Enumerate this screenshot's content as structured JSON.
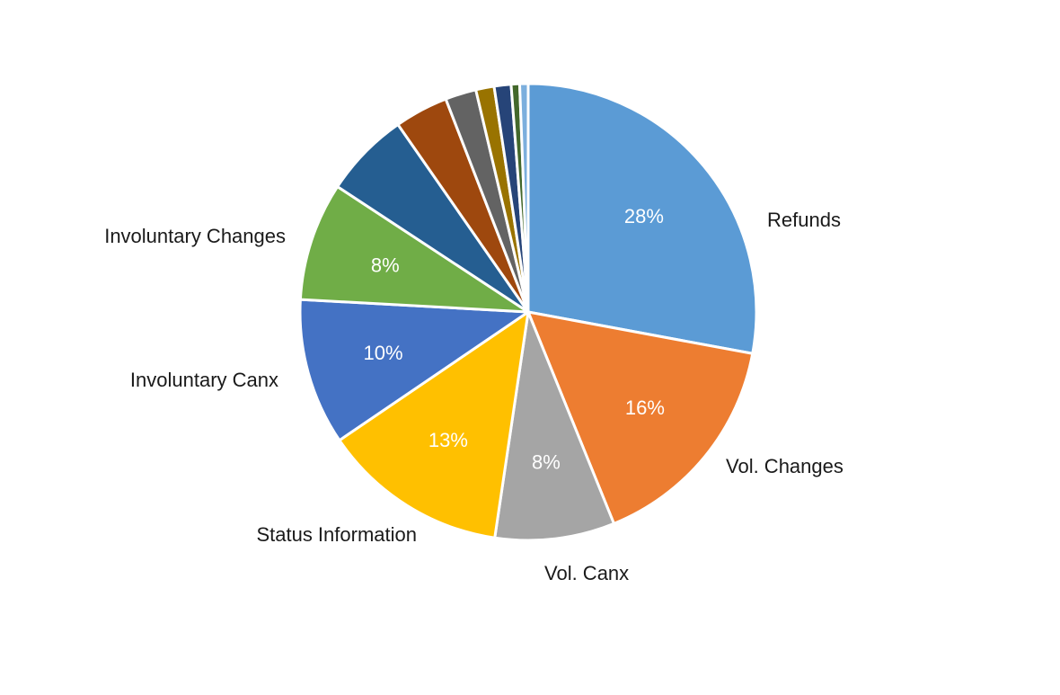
{
  "chart_data": {
    "type": "pie",
    "title": "",
    "start_angle_deg": 0,
    "direction": "clockwise",
    "slices": [
      {
        "label": "Refunds",
        "value": 28,
        "percent_label": "28%",
        "color": "#5B9BD5",
        "show_label": true
      },
      {
        "label": "Vol. Changes",
        "value": 16,
        "percent_label": "16%",
        "color": "#ED7D31",
        "show_label": true
      },
      {
        "label": "Vol. Canx",
        "value": 8.5,
        "percent_label": "8%",
        "color": "#A5A5A5",
        "show_label": true
      },
      {
        "label": "Status Information",
        "value": 13.2,
        "percent_label": "13%",
        "color": "#FFC000",
        "show_label": true
      },
      {
        "label": "Involuntary Canx",
        "value": 10.4,
        "percent_label": "10%",
        "color": "#4472C4",
        "show_label": true
      },
      {
        "label": "Involuntary Changes",
        "value": 8.4,
        "percent_label": "8%",
        "color": "#70AD47",
        "show_label": true
      },
      {
        "label": "",
        "value": 6.1,
        "percent_label": "",
        "color": "#255E91",
        "show_label": false
      },
      {
        "label": "",
        "value": 3.8,
        "percent_label": "",
        "color": "#9E480E",
        "show_label": false
      },
      {
        "label": "",
        "value": 2.2,
        "percent_label": "",
        "color": "#636363",
        "show_label": false
      },
      {
        "label": "",
        "value": 1.3,
        "percent_label": "",
        "color": "#997300",
        "show_label": false
      },
      {
        "label": "",
        "value": 1.2,
        "percent_label": "",
        "color": "#264478",
        "show_label": false
      },
      {
        "label": "",
        "value": 0.6,
        "percent_label": "",
        "color": "#43682B",
        "show_label": false
      },
      {
        "label": "",
        "value": 0.6,
        "percent_label": "",
        "color": "#7CAFDD",
        "show_label": false
      }
    ]
  }
}
